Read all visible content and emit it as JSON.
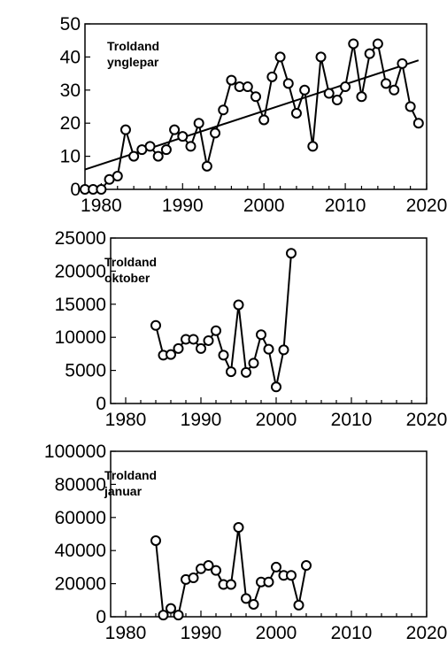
{
  "chart_data": [
    {
      "type": "line",
      "title": "Troldand ynglepar",
      "title_lines": [
        "Troldand",
        "ynglepar"
      ],
      "xlabel": "",
      "ylabel": "",
      "xlim": [
        1978,
        2020
      ],
      "ylim": [
        0,
        50
      ],
      "x_ticks": [
        1980,
        1990,
        2000,
        2010,
        2020
      ],
      "y_ticks": [
        0,
        10,
        20,
        30,
        40,
        50
      ],
      "grid": false,
      "legend": "none",
      "series": [
        {
          "x": [
            1978,
            1979,
            1980,
            1981,
            1982,
            1983,
            1984,
            1985,
            1986,
            1987,
            1988,
            1989,
            1990,
            1991,
            1992,
            1993,
            1994,
            1995,
            1996,
            1997,
            1998,
            1999,
            2000,
            2001,
            2002,
            2003,
            2004,
            2005,
            2006,
            2007,
            2008,
            2009,
            2010,
            2011,
            2012,
            2013,
            2014,
            2015,
            2016,
            2017,
            2018,
            2019
          ],
          "y": [
            0,
            0,
            0,
            3,
            4,
            18,
            10,
            12,
            13,
            10,
            12,
            18,
            16,
            13,
            20,
            7,
            17,
            24,
            33,
            31,
            31,
            28,
            21,
            34,
            40,
            32,
            23,
            30,
            13,
            40,
            29,
            27,
            31,
            44,
            28,
            41,
            44,
            32,
            30,
            38,
            25,
            20
          ]
        }
      ],
      "trend_line": {
        "x": [
          1978,
          2019
        ],
        "y": [
          6,
          39
        ]
      }
    },
    {
      "type": "line",
      "title": "Troldand oktober",
      "title_lines": [
        "Troldand",
        "oktober"
      ],
      "xlabel": "",
      "ylabel": "",
      "xlim": [
        1978,
        2020
      ],
      "ylim": [
        0,
        25000
      ],
      "x_ticks": [
        1980,
        1990,
        2000,
        2010,
        2020
      ],
      "y_ticks": [
        0,
        5000,
        10000,
        15000,
        20000,
        25000
      ],
      "grid": false,
      "legend": "none",
      "series": [
        {
          "x": [
            1984,
            1985,
            1986,
            1987,
            1988,
            1989,
            1990,
            1991,
            1992,
            1993,
            1994,
            1995,
            1996,
            1997,
            1998,
            1999,
            2000,
            2001,
            2002
          ],
          "y": [
            11800,
            7300,
            7400,
            8300,
            9700,
            9700,
            8300,
            9500,
            11000,
            7300,
            4800,
            14900,
            4700,
            6100,
            10400,
            8200,
            2500,
            8100,
            22700
          ]
        }
      ]
    },
    {
      "type": "line",
      "title": "Troldand januar",
      "title_lines": [
        "Troldand",
        "januar"
      ],
      "xlabel": "",
      "ylabel": "",
      "xlim": [
        1978,
        2020
      ],
      "ylim": [
        0,
        100000
      ],
      "x_ticks": [
        1980,
        1990,
        2000,
        2010,
        2020
      ],
      "y_ticks": [
        0,
        20000,
        40000,
        60000,
        80000,
        100000
      ],
      "grid": false,
      "legend": "none",
      "series": [
        {
          "x": [
            1984,
            1985,
            1986,
            1987,
            1988,
            1989,
            1990,
            1991,
            1992,
            1993,
            1994,
            1995,
            1996,
            1997,
            1998,
            1999,
            2000,
            2001,
            2002,
            2003,
            2004
          ],
          "y": [
            46000,
            1000,
            5000,
            1000,
            22500,
            23500,
            29000,
            31000,
            28000,
            19500,
            19500,
            54000,
            11000,
            7500,
            21000,
            21000,
            30000,
            25000,
            25000,
            7000,
            31000
          ]
        }
      ]
    }
  ]
}
